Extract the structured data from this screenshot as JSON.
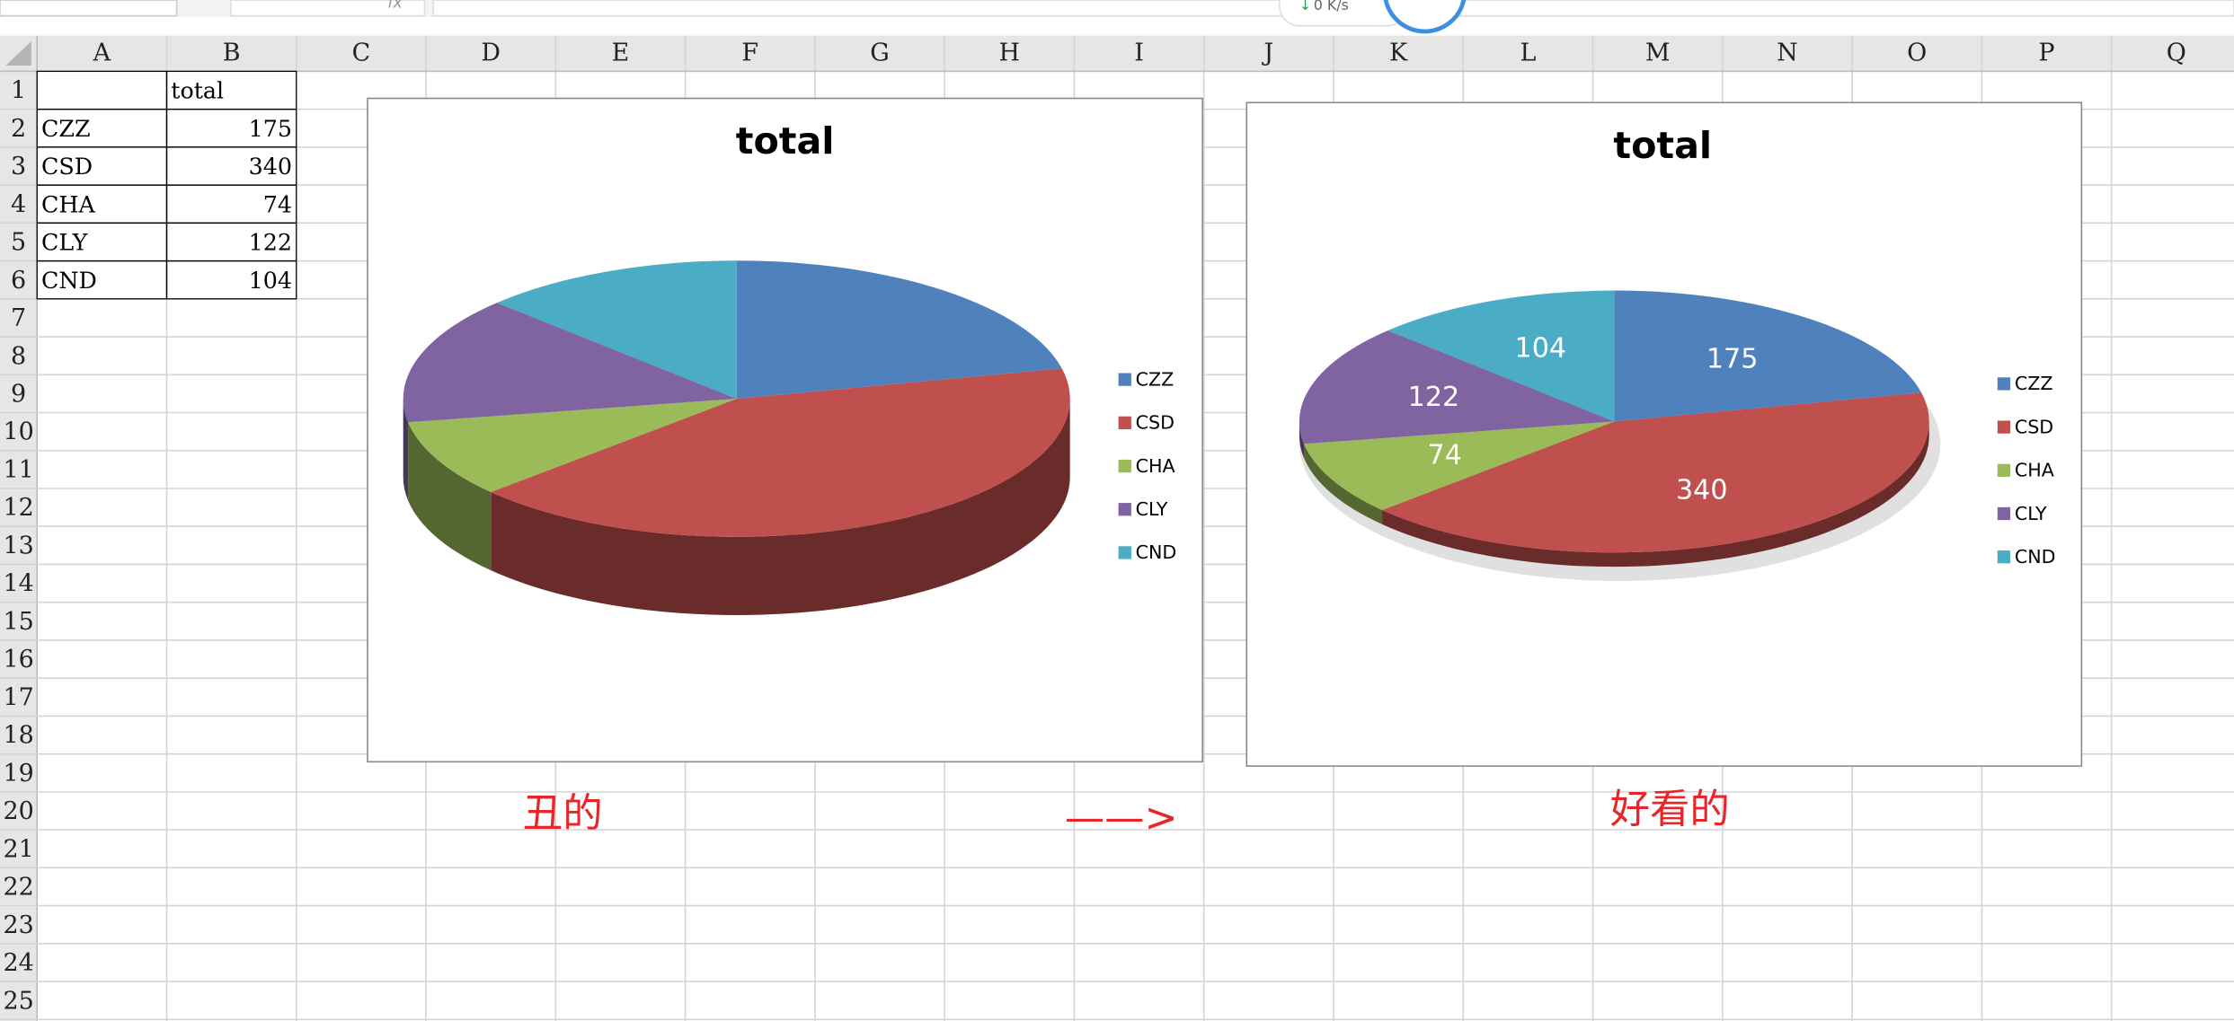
{
  "toolbar": {
    "formula_icon": "fx",
    "network": "0 K/s"
  },
  "sheet": {
    "columns": [
      "A",
      "B",
      "C",
      "D",
      "E",
      "F",
      "G",
      "H",
      "I",
      "J",
      "K",
      "L",
      "M",
      "N",
      "O",
      "P",
      "Q"
    ],
    "rows": [
      1,
      2,
      3,
      4,
      5,
      6,
      7,
      8,
      9,
      10,
      11,
      12,
      13,
      14,
      15,
      16,
      17,
      18,
      19,
      20,
      21,
      22,
      23,
      24,
      25
    ],
    "cells": [
      [
        null,
        "total"
      ],
      [
        "CZZ",
        175
      ],
      [
        "CSD",
        340
      ],
      [
        "CHA",
        74
      ],
      [
        "CLY",
        122
      ],
      [
        "CND",
        104
      ]
    ]
  },
  "chart_data": [
    {
      "type": "pie",
      "title": "total",
      "categories": [
        "CZZ",
        "CSD",
        "CHA",
        "CLY",
        "CND"
      ],
      "values": [
        175,
        340,
        74,
        122,
        104
      ],
      "colors": [
        "#4f81bd",
        "#c0504d",
        "#9bbb59",
        "#8064a2",
        "#4bacc6"
      ],
      "legend": "right",
      "data_labels": false
    },
    {
      "type": "pie",
      "title": "total",
      "categories": [
        "CZZ",
        "CSD",
        "CHA",
        "CLY",
        "CND"
      ],
      "values": [
        175,
        340,
        74,
        122,
        104
      ],
      "colors": [
        "#4f81bd",
        "#c0504d",
        "#9bbb59",
        "#8064a2",
        "#4bacc6"
      ],
      "legend": "right",
      "data_labels": true
    }
  ],
  "annotations": [
    "丑的",
    "——>",
    "好看的"
  ]
}
